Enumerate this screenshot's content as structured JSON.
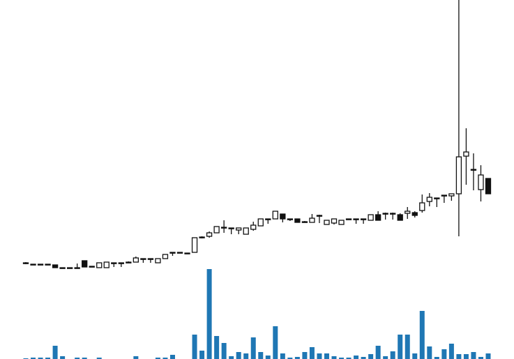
{
  "chart_data": {
    "type": "candlestick",
    "open": [
      138,
      136,
      136,
      136,
      135,
      131,
      131,
      131,
      141,
      133,
      131,
      131,
      138,
      138,
      139,
      139,
      144,
      144,
      138,
      144,
      153,
      153,
      152,
      153,
      174,
      176,
      181,
      189,
      188,
      185,
      179,
      186,
      191,
      201,
      201,
      208,
      201,
      201,
      197,
      196,
      206,
      193,
      195,
      193,
      201,
      201,
      201,
      199,
      207,
      209,
      209,
      207,
      209,
      210,
      213,
      226,
      231,
      235,
      234,
      237,
      291,
      272,
      243,
      259
    ],
    "high": [
      139,
      136,
      136,
      136,
      135,
      131,
      131,
      137,
      141,
      133,
      138,
      139,
      138,
      138,
      140,
      147,
      144,
      144,
      144,
      150,
      153,
      153,
      152,
      174,
      176,
      183,
      190,
      199,
      188,
      188,
      188,
      197,
      201,
      201,
      212,
      208,
      201,
      201,
      198,
      208,
      207,
      199,
      201,
      199,
      201,
      201,
      201,
      207,
      212,
      210,
      210,
      209,
      218,
      212,
      236,
      238,
      231,
      235,
      237,
      515,
      331,
      295,
      278,
      259
    ],
    "low": [
      136,
      136,
      136,
      136,
      131,
      131,
      131,
      131,
      132,
      133,
      131,
      131,
      132,
      132,
      138,
      139,
      138,
      138,
      138,
      144,
      148,
      152,
      152,
      153,
      173,
      174,
      181,
      181,
      179,
      179,
      179,
      184,
      191,
      194,
      201,
      196,
      198,
      196,
      196,
      196,
      195,
      193,
      193,
      193,
      200,
      194,
      194,
      199,
      199,
      200,
      200,
      199,
      201,
      203,
      210,
      219,
      218,
      224,
      227,
      176,
      250,
      242,
      226,
      237
    ],
    "close": [
      137,
      136,
      136,
      136,
      131,
      131,
      131,
      131,
      132,
      133,
      138,
      139,
      138,
      138,
      139,
      145,
      144,
      144,
      144,
      150,
      153,
      153,
      152,
      174,
      175,
      181,
      190,
      189,
      188,
      188,
      188,
      192,
      201,
      201,
      212,
      201,
      201,
      196,
      197,
      202,
      206,
      199,
      201,
      199,
      201,
      201,
      201,
      207,
      199,
      209,
      209,
      199,
      212,
      206,
      224,
      232,
      231,
      235,
      237,
      290,
      297,
      272,
      264,
      237
    ],
    "volume": [
      1,
      2,
      2,
      2,
      19,
      4,
      0,
      2,
      2,
      0,
      2,
      0,
      0,
      0,
      0,
      4,
      0,
      0,
      2,
      2,
      6,
      0,
      0,
      35,
      12,
      129,
      33,
      23,
      4,
      10,
      8,
      31,
      10,
      5,
      47,
      8,
      2,
      3,
      10,
      17,
      8,
      8,
      4,
      2,
      2,
      5,
      3,
      7,
      19,
      4,
      11,
      35,
      35,
      8,
      69,
      18,
      3,
      14,
      22,
      7,
      7,
      10,
      3,
      8
    ],
    "ylim": [
      100,
      515
    ],
    "volume_lim": [
      0,
      130
    ],
    "up_color": "#ffffff",
    "down_color": "#111111",
    "edge_color": "#111111",
    "volume_color": "#1f77b4"
  }
}
